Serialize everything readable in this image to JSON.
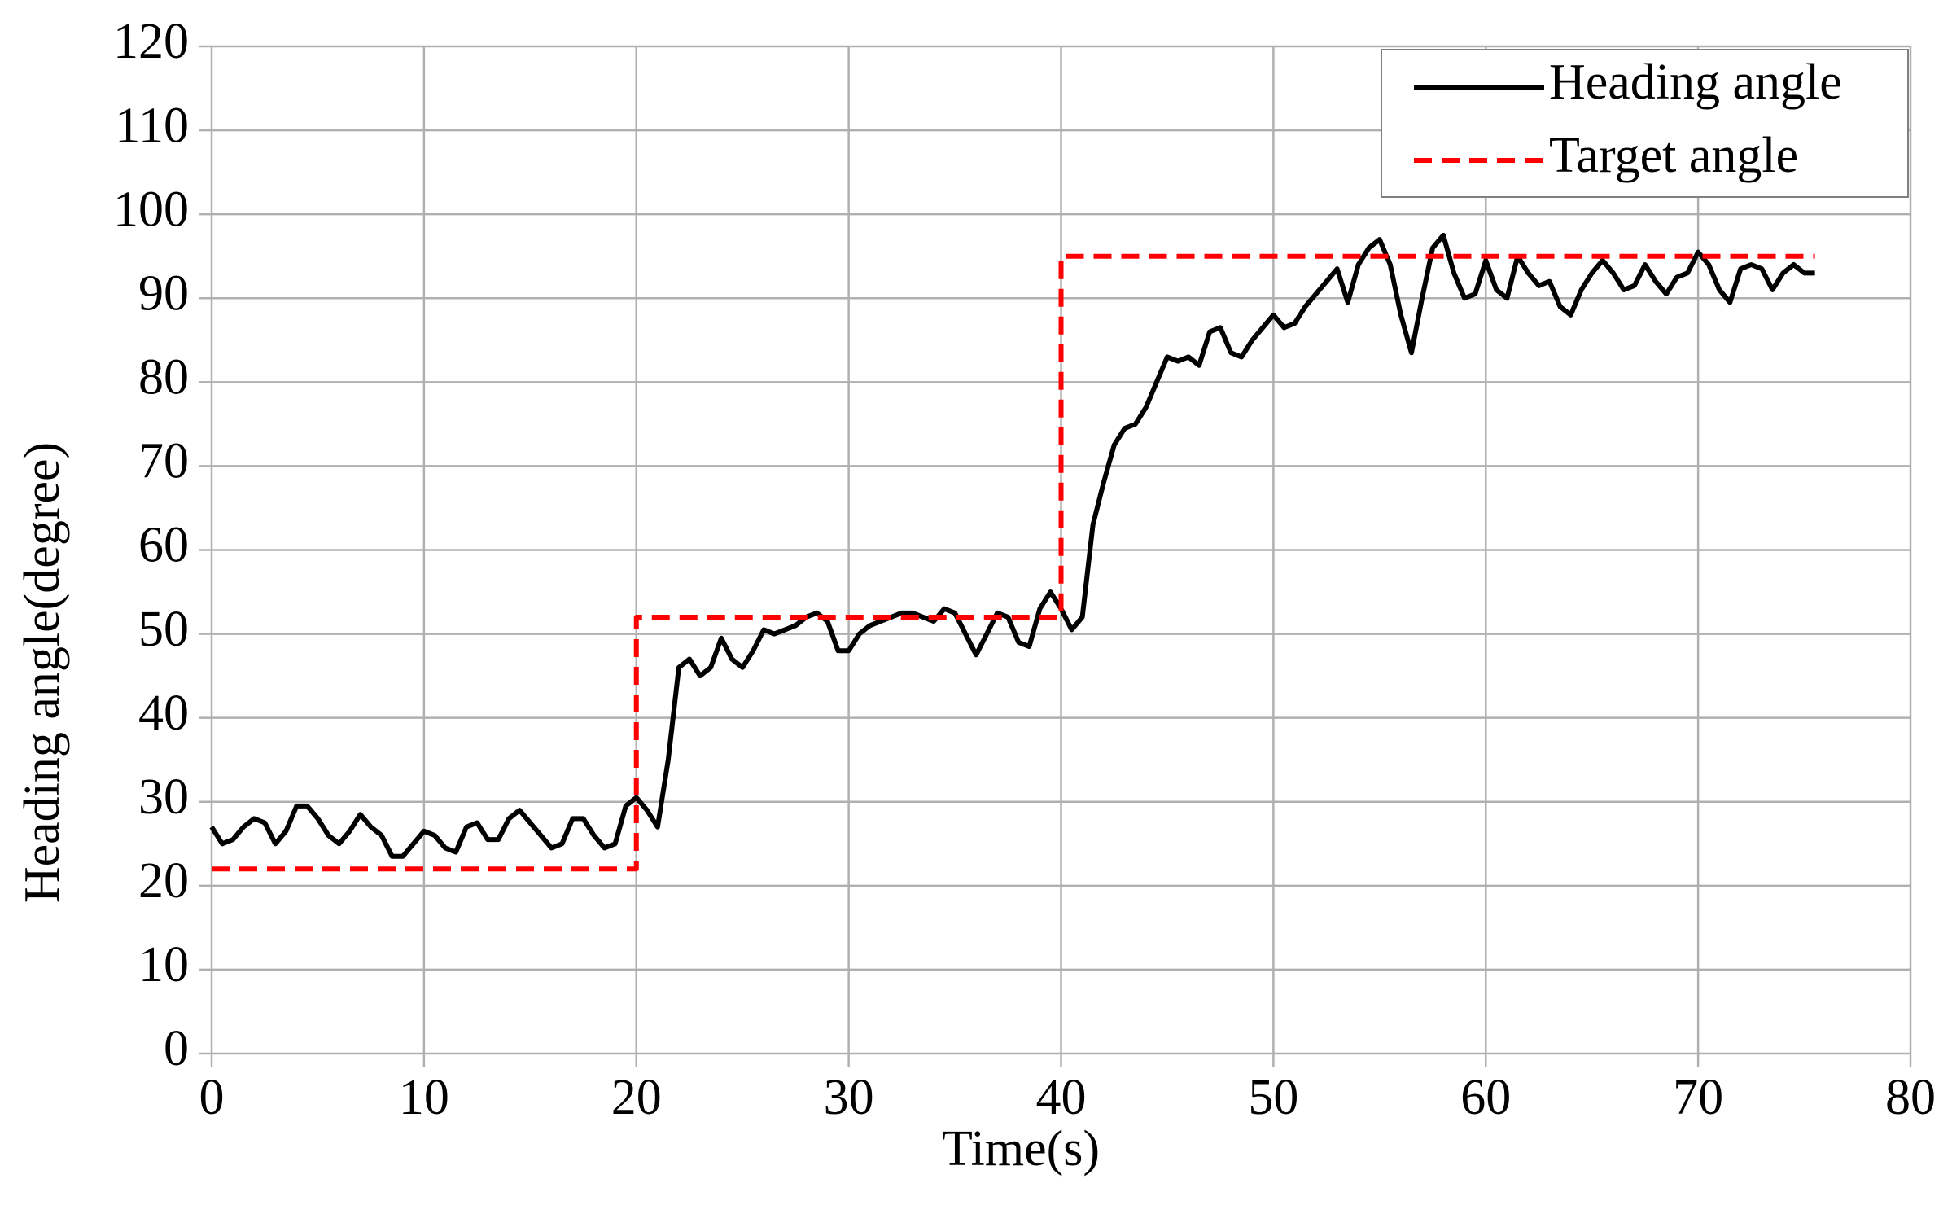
{
  "chart_data": {
    "type": "line",
    "xlabel": "Time(s)",
    "ylabel": "Heading  angle(degree)",
    "xlim": [
      0,
      80
    ],
    "ylim": [
      0,
      120
    ],
    "xticks": [
      0,
      10,
      20,
      30,
      40,
      50,
      60,
      70,
      80
    ],
    "yticks": [
      0,
      10,
      20,
      30,
      40,
      50,
      60,
      70,
      80,
      90,
      100,
      110,
      120
    ],
    "grid": true,
    "legend": "upper right",
    "series": [
      {
        "name": "Heading angle",
        "color": "#000000",
        "linestyle": "solid",
        "x": [
          0,
          0.5,
          1,
          1.5,
          2,
          2.5,
          3,
          3.5,
          4,
          4.5,
          5,
          5.5,
          6,
          6.5,
          7,
          7.5,
          8,
          8.5,
          9,
          9.5,
          10,
          10.5,
          11,
          11.5,
          12,
          12.5,
          13,
          13.5,
          14,
          14.5,
          15,
          15.5,
          16,
          16.5,
          17,
          17.5,
          18,
          18.5,
          19,
          19.5,
          20,
          20.5,
          21,
          21.5,
          22,
          22.5,
          23,
          23.5,
          24,
          24.5,
          25,
          25.5,
          26,
          26.5,
          27,
          27.5,
          28,
          28.5,
          29,
          29.5,
          30,
          30.5,
          31,
          31.5,
          32,
          32.5,
          33,
          33.5,
          34,
          34.5,
          35,
          35.5,
          36,
          36.5,
          37,
          37.5,
          38,
          38.5,
          39,
          39.5,
          40,
          40.5,
          41,
          41.5,
          42,
          42.5,
          43,
          43.5,
          44,
          44.5,
          45,
          45.5,
          46,
          46.5,
          47,
          47.5,
          48,
          48.5,
          49,
          49.5,
          50,
          50.5,
          51,
          51.5,
          52,
          52.5,
          53,
          53.5,
          54,
          54.5,
          55,
          55.5,
          56,
          56.5,
          57,
          57.5,
          58,
          58.5,
          59,
          59.5,
          60,
          60.5,
          61,
          61.5,
          62,
          62.5,
          63,
          63.5,
          64,
          64.5,
          65,
          65.5,
          66,
          66.5,
          67,
          67.5,
          68,
          68.5,
          69,
          69.5,
          70,
          70.5,
          71,
          71.5,
          72,
          72.5,
          73,
          73.5,
          74,
          74.5,
          75,
          75.5
        ],
        "values": [
          27,
          25,
          25.5,
          27,
          28,
          27.5,
          25,
          26.5,
          29.5,
          29.5,
          28,
          26,
          25,
          26.5,
          28.5,
          27,
          26,
          23.5,
          23.5,
          25,
          26.5,
          26,
          24.5,
          24,
          27,
          27.5,
          25.5,
          25.5,
          28,
          29,
          27.5,
          26,
          24.5,
          25,
          28,
          28,
          26,
          24.5,
          25,
          29.5,
          30.5,
          29,
          27,
          35,
          46,
          47,
          45,
          46,
          49.5,
          47,
          46,
          48,
          50.5,
          50,
          50.5,
          51,
          52,
          52.5,
          51.5,
          48,
          48,
          50,
          51,
          51.5,
          52,
          52.5,
          52.5,
          52,
          51.5,
          53,
          52.5,
          50,
          47.5,
          50,
          52.5,
          52,
          49,
          48.5,
          53,
          55,
          53,
          50.5,
          52,
          63,
          68,
          72.5,
          74.5,
          75,
          77,
          80,
          83,
          82.5,
          83,
          82,
          86,
          86.5,
          83.5,
          83,
          85,
          86.5,
          88,
          86.5,
          87,
          89,
          90.5,
          92,
          93.5,
          89.5,
          94,
          96,
          97,
          94,
          88,
          83.5,
          90,
          96,
          97.5,
          93,
          90,
          90.5,
          94.5,
          91,
          90,
          95,
          93,
          91.5,
          92,
          89,
          88,
          91,
          93,
          94.5,
          93,
          91,
          91.5,
          94,
          92,
          90.5,
          92.5,
          93,
          95.5,
          94,
          91,
          89.5,
          93.5,
          94,
          93.5,
          91,
          93,
          94,
          93,
          93
        ]
      },
      {
        "name": "Target angle",
        "color": "#ff0000",
        "linestyle": "dashed",
        "x": [
          0,
          20,
          20,
          40,
          40,
          75.5
        ],
        "values": [
          22,
          22,
          52,
          52,
          95,
          95
        ]
      }
    ]
  }
}
